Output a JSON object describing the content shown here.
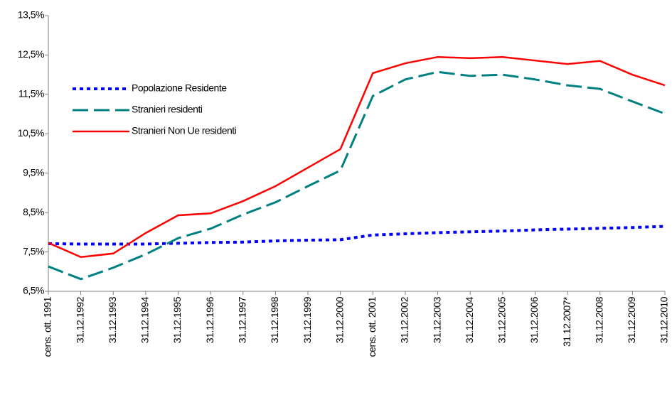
{
  "chart_data": {
    "type": "line",
    "categories": [
      "cens. ott. 1991",
      "31.12.1992",
      "31.12.1993",
      "31.12.1994",
      "31.12.1995",
      "31.12.1996",
      "31.12.1997",
      "31.12.1998",
      "31.12.1999",
      "31.12.2000",
      "cens. ott. 2001",
      "31.12.2002",
      "31.12.2003",
      "31.12.2004",
      "31.12.2005",
      "31.12.2006",
      "31.12.2007*",
      "31.12.2008",
      "31.12.2009",
      "31.12.2010"
    ],
    "series": [
      {
        "name": "Popolazione Residente",
        "color": "#0000ff",
        "values": [
          7.71,
          7.7,
          7.7,
          7.7,
          7.72,
          7.74,
          7.75,
          7.78,
          7.8,
          7.81,
          7.93,
          7.96,
          7.99,
          8.01,
          8.03,
          8.06,
          8.08,
          8.1,
          8.12,
          8.15
        ]
      },
      {
        "name": "Stranieri residenti",
        "color": "#008080",
        "values": [
          7.13,
          6.81,
          7.1,
          7.44,
          7.85,
          8.09,
          8.45,
          8.76,
          9.17,
          9.57,
          11.46,
          11.88,
          12.07,
          11.97,
          12.0,
          11.88,
          11.73,
          11.64,
          11.32,
          11.01
        ]
      },
      {
        "name": "Stranieri Non Ue residenti",
        "color": "#ff0000",
        "values": [
          7.73,
          7.37,
          7.46,
          7.98,
          8.43,
          8.48,
          8.79,
          9.17,
          9.64,
          10.11,
          12.04,
          12.29,
          12.45,
          12.42,
          12.45,
          12.36,
          12.27,
          12.35,
          12.0,
          11.73
        ]
      }
    ],
    "ylim": [
      6.5,
      13.5
    ],
    "yticks": [
      {
        "value": 6.5,
        "label": "6,5%"
      },
      {
        "value": 7.5,
        "label": "7,5%"
      },
      {
        "value": 8.5,
        "label": "8,5%"
      },
      {
        "value": 9.5,
        "label": "9,5%"
      },
      {
        "value": 10.5,
        "label": "10,5%"
      },
      {
        "value": 11.5,
        "label": "11,5%"
      },
      {
        "value": 12.5,
        "label": "12,5%"
      },
      {
        "value": 13.5,
        "label": "13,5%"
      }
    ],
    "grid": false,
    "legend": "upper left"
  }
}
